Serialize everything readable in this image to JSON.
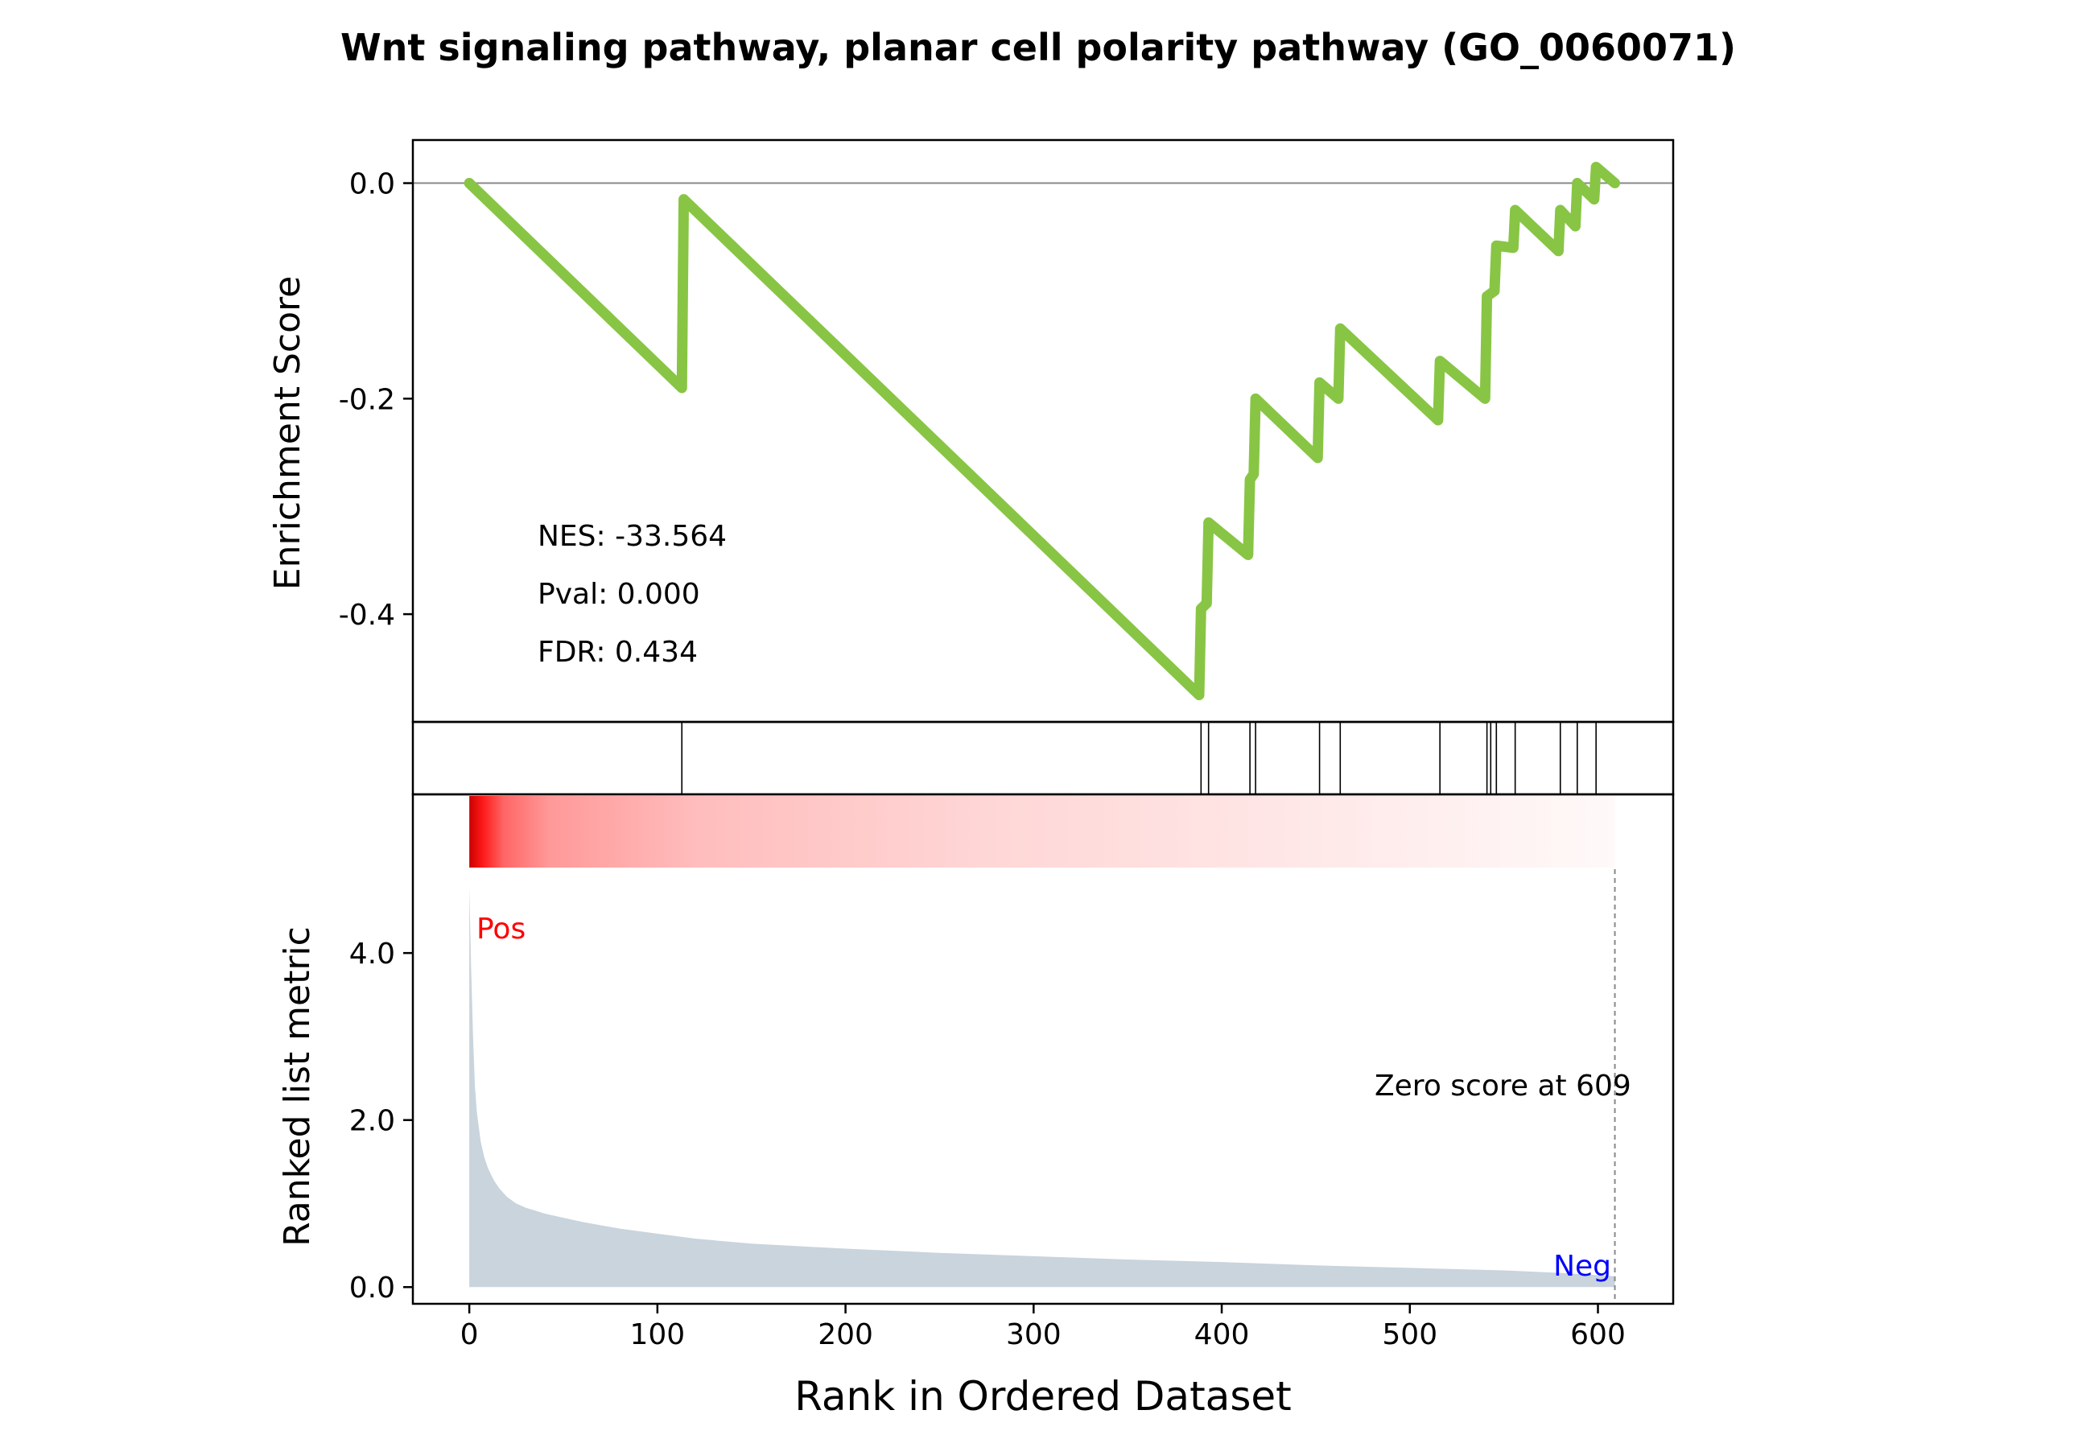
{
  "chart_data": {
    "type": "line",
    "title": "Wnt signaling pathway, planar cell polarity pathway (GO_0060071)",
    "xlabel": "Rank in Ordered Dataset",
    "xlim": [
      -30,
      640
    ],
    "x_ticks": [
      0,
      100,
      200,
      300,
      400,
      500,
      600
    ],
    "x_tick_labels": [
      "0",
      "100",
      "200",
      "300",
      "400",
      "500",
      "600"
    ],
    "enrichment": {
      "ylabel": "Enrichment Score",
      "ylim": [
        -0.5,
        0.04
      ],
      "y_ticks": [
        0.0,
        -0.2,
        -0.4
      ],
      "y_tick_labels": [
        "0.0",
        "-0.2",
        "-0.4"
      ],
      "color": "#88c544",
      "x": [
        0,
        113,
        114,
        388,
        389,
        392,
        393,
        414,
        415,
        417,
        418,
        451,
        452,
        462,
        463,
        515,
        516,
        540,
        541,
        545,
        546,
        555,
        556,
        579,
        580,
        588,
        589,
        598,
        599,
        609
      ],
      "y": [
        0.0,
        -0.19,
        -0.015,
        -0.475,
        -0.395,
        -0.39,
        -0.315,
        -0.345,
        -0.275,
        -0.27,
        -0.2,
        -0.255,
        -0.185,
        -0.2,
        -0.135,
        -0.22,
        -0.165,
        -0.2,
        -0.105,
        -0.1,
        -0.058,
        -0.06,
        -0.025,
        -0.063,
        -0.025,
        -0.04,
        0.0,
        -0.015,
        0.015,
        0.0
      ]
    },
    "annotations": {
      "nes": "NES: -33.564",
      "pval": "Pval: 0.000",
      "fdr": "FDR: 0.434"
    },
    "hits": [
      113,
      389,
      393,
      415,
      418,
      452,
      463,
      516,
      541,
      543,
      546,
      556,
      580,
      589,
      599
    ],
    "ranked_metric": {
      "ylabel": "Ranked list metric",
      "ylim": [
        -0.2,
        5.9
      ],
      "y_ticks": [
        0.0,
        2.0,
        4.0
      ],
      "y_tick_labels": [
        "0.0",
        "2.0",
        "4.0"
      ],
      "fill_color": "#c9d4dd",
      "x": [
        0,
        1,
        2,
        3,
        4,
        6,
        8,
        10,
        13,
        16,
        20,
        25,
        30,
        40,
        50,
        60,
        70,
        80,
        100,
        120,
        150,
        200,
        250,
        300,
        350,
        400,
        450,
        500,
        550,
        580,
        609
      ],
      "y": [
        4.8,
        3.8,
        3.0,
        2.4,
        2.1,
        1.75,
        1.55,
        1.42,
        1.28,
        1.18,
        1.08,
        1.0,
        0.95,
        0.88,
        0.83,
        0.78,
        0.74,
        0.7,
        0.64,
        0.58,
        0.52,
        0.46,
        0.41,
        0.37,
        0.33,
        0.3,
        0.26,
        0.23,
        0.2,
        0.17,
        0.13
      ]
    },
    "pos_label": "Pos",
    "neg_label": "Neg",
    "zero_score_label": "Zero score at 609",
    "zero_score_rank": 609,
    "heatmap_color": "#ff0000"
  }
}
